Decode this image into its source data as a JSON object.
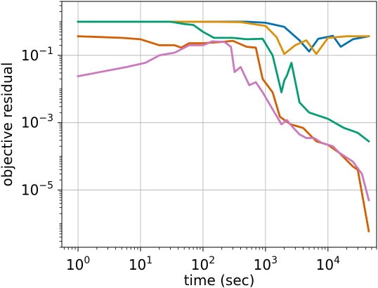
{
  "chart_data": {
    "type": "line",
    "xlabel": "time (sec)",
    "ylabel": "objective residual",
    "xscale": "log",
    "yscale": "log",
    "xlim": [
      0.55,
      60000
    ],
    "ylim": [
      2e-07,
      4
    ],
    "grid": true,
    "legend": "none",
    "x_ticks": [
      {
        "value": 1,
        "base": "10",
        "exp": "0"
      },
      {
        "value": 10,
        "base": "10",
        "exp": "1"
      },
      {
        "value": 100,
        "base": "10",
        "exp": "2"
      },
      {
        "value": 1000,
        "base": "10",
        "exp": "3"
      },
      {
        "value": 10000,
        "base": "10",
        "exp": "4"
      }
    ],
    "y_ticks": [
      {
        "value": 1e-05,
        "base": "10",
        "exp": "−5"
      },
      {
        "value": 0.001,
        "base": "10",
        "exp": "−3"
      },
      {
        "value": 0.1,
        "base": "10",
        "exp": "−1"
      }
    ],
    "series": [
      {
        "color": "#0173b2",
        "points": [
          [
            1,
            1.0
          ],
          [
            100,
            1.0
          ],
          [
            500,
            1.0
          ],
          [
            1000,
            0.93
          ],
          [
            2000,
            0.7
          ],
          [
            3500,
            0.28
          ],
          [
            5000,
            0.13
          ],
          [
            7000,
            0.31
          ],
          [
            12000,
            0.38
          ],
          [
            16000,
            0.18
          ],
          [
            25000,
            0.3
          ],
          [
            45000,
            0.37
          ]
        ]
      },
      {
        "color": "#de8f05",
        "points": [
          [
            1,
            1.0
          ],
          [
            100,
            1.0
          ],
          [
            400,
            0.97
          ],
          [
            1000,
            0.75
          ],
          [
            1500,
            0.35
          ],
          [
            2000,
            0.11
          ],
          [
            3000,
            0.2
          ],
          [
            4500,
            0.28
          ],
          [
            6500,
            0.11
          ],
          [
            10000,
            0.33
          ],
          [
            20000,
            0.37
          ],
          [
            45000,
            0.37
          ]
        ]
      },
      {
        "color": "#029e73",
        "points": [
          [
            1,
            1.0
          ],
          [
            30,
            1.0
          ],
          [
            50,
            0.85
          ],
          [
            70,
            0.8
          ],
          [
            100,
            0.5
          ],
          [
            150,
            0.33
          ],
          [
            300,
            0.33
          ],
          [
            500,
            0.3
          ],
          [
            900,
            0.31
          ],
          [
            1300,
            0.1
          ],
          [
            1800,
            0.008
          ],
          [
            2000,
            0.018
          ],
          [
            2200,
            0.025
          ],
          [
            2600,
            0.06
          ],
          [
            3500,
            0.004
          ],
          [
            5000,
            0.002
          ],
          [
            10000,
            0.0013
          ],
          [
            18000,
            0.0007
          ],
          [
            30000,
            0.0005
          ],
          [
            45000,
            0.00028
          ]
        ]
      },
      {
        "color": "#d55e00",
        "points": [
          [
            1,
            0.37
          ],
          [
            5,
            0.33
          ],
          [
            10,
            0.3
          ],
          [
            20,
            0.2
          ],
          [
            35,
            0.2
          ],
          [
            45,
            0.17
          ],
          [
            60,
            0.23
          ],
          [
            100,
            0.23
          ],
          [
            200,
            0.25
          ],
          [
            300,
            0.27
          ],
          [
            500,
            0.18
          ],
          [
            700,
            0.17
          ],
          [
            900,
            0.02
          ],
          [
            1300,
            0.008
          ],
          [
            1700,
            0.0015
          ],
          [
            2500,
            0.0009
          ],
          [
            4000,
            0.0007
          ],
          [
            6500,
            0.00028
          ],
          [
            10000,
            0.00022
          ],
          [
            15000,
            0.00013
          ],
          [
            25000,
            5e-05
          ],
          [
            30000,
            4e-05
          ],
          [
            45000,
            6e-07
          ]
        ]
      },
      {
        "color": "#cc78bc",
        "points": [
          [
            1,
            0.024
          ],
          [
            6,
            0.045
          ],
          [
            12,
            0.06
          ],
          [
            20,
            0.1
          ],
          [
            35,
            0.12
          ],
          [
            60,
            0.2
          ],
          [
            100,
            0.2
          ],
          [
            140,
            0.26
          ],
          [
            220,
            0.25
          ],
          [
            280,
            0.18
          ],
          [
            320,
            0.032
          ],
          [
            400,
            0.045
          ],
          [
            550,
            0.013
          ],
          [
            700,
            0.016
          ],
          [
            900,
            0.008
          ],
          [
            1300,
            0.0025
          ],
          [
            1800,
            0.0009
          ],
          [
            2200,
            0.0012
          ],
          [
            2800,
            0.0007
          ],
          [
            3500,
            0.00045
          ],
          [
            4500,
            0.00035
          ],
          [
            6000,
            0.00035
          ],
          [
            8000,
            0.00025
          ],
          [
            12000,
            0.0002
          ],
          [
            15000,
            0.00013
          ],
          [
            25000,
            7e-05
          ],
          [
            35000,
            3e-05
          ],
          [
            45000,
            5e-06
          ]
        ]
      }
    ]
  }
}
